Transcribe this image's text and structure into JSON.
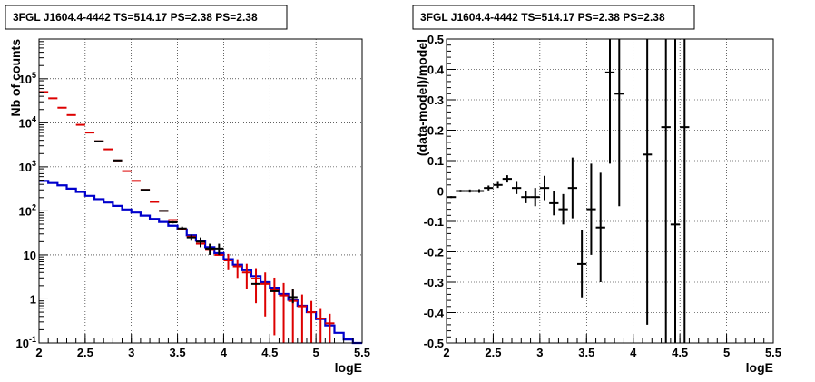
{
  "chart_data": [
    {
      "type": "line",
      "title": "3FGL J1604.4-4442 TS=514.17 PS=2.38 PS=2.38",
      "xlabel": "logE",
      "ylabel": "Nb of counts",
      "xlim": [
        2,
        5.5
      ],
      "ylim": [
        0.1,
        800000
      ],
      "yscale": "log",
      "grid": true,
      "x_ticks": [
        "2",
        "2.5",
        "3",
        "3.5",
        "4",
        "4.5",
        "5",
        "5.5"
      ],
      "y_ticks": [
        "10^{-1}",
        "1",
        "10",
        "10^{2}",
        "10^{3}",
        "10^{4}",
        "10^{5}"
      ],
      "series": [
        {
          "color": "#0000cc",
          "style": "step",
          "x": [
            2.05,
            2.15,
            2.25,
            2.35,
            2.45,
            2.55,
            2.65,
            2.75,
            2.85,
            2.95,
            3.05,
            3.15,
            3.25,
            3.35,
            3.45,
            3.55,
            3.65,
            3.75,
            3.85,
            3.95,
            4.05,
            4.15,
            4.25,
            4.35,
            4.45,
            4.55,
            4.65,
            4.75,
            4.85,
            4.95,
            5.05,
            5.15,
            5.25,
            5.35,
            5.45
          ],
          "y": [
            480,
            430,
            380,
            320,
            270,
            220,
            185,
            155,
            130,
            108,
            92,
            78,
            66,
            56,
            46,
            38,
            28,
            21,
            15,
            11,
            8.0,
            6.0,
            4.5,
            3.3,
            2.4,
            1.8,
            1.3,
            0.95,
            0.7,
            0.5,
            0.35,
            0.25,
            0.17,
            0.12,
            0.1
          ]
        },
        {
          "color": "#dd0000",
          "style": "markers-errorbars",
          "x": [
            2.05,
            2.15,
            2.25,
            2.35,
            2.45,
            2.55,
            2.65,
            2.75,
            2.85,
            2.95,
            3.05,
            3.15,
            3.25,
            3.35,
            3.45,
            3.55,
            3.65,
            3.75,
            3.85,
            3.95,
            4.05,
            4.15,
            4.25,
            4.35,
            4.45,
            4.55,
            4.65,
            4.75,
            4.85,
            4.95,
            5.05,
            5.15
          ],
          "y": [
            50000,
            36000,
            22000,
            15000,
            9000,
            6000,
            3800,
            2500,
            1400,
            800,
            480,
            300,
            160,
            100,
            62,
            38,
            26,
            18,
            13,
            10,
            7.5,
            5.5,
            4.0,
            2.9,
            2.2,
            1.6,
            1.2,
            0.9,
            0.68,
            0.5,
            0.36,
            0.28
          ],
          "err_low": [
            0,
            0,
            0,
            0,
            0,
            0,
            0,
            0,
            0,
            0,
            0,
            0,
            0,
            0,
            0,
            0,
            0,
            0,
            0,
            0,
            3,
            2.5,
            2.3,
            2.1,
            1.8,
            1.45,
            1.1,
            0.8,
            0.58,
            0.4,
            0.26,
            0.18
          ],
          "err_high": [
            0,
            0,
            0,
            0,
            0,
            0,
            0,
            0,
            0,
            0,
            0,
            0,
            0,
            0,
            0,
            0,
            0,
            0,
            0,
            0,
            3,
            2.5,
            2.3,
            2.1,
            1.8,
            1.45,
            1.1,
            0.8,
            0.58,
            0.4,
            0.26,
            0.18
          ]
        },
        {
          "color": "#000000",
          "style": "markers-errorbars",
          "x": [
            2.65,
            2.85,
            3.15,
            3.35,
            3.45,
            3.55,
            3.65,
            3.75,
            3.85,
            3.95,
            4.35,
            4.55,
            4.75
          ],
          "y": [
            3800,
            1400,
            300,
            100,
            55,
            40,
            25,
            20,
            14,
            14,
            2.2,
            1.5,
            1.1
          ],
          "err_low": [
            0,
            0,
            0,
            0,
            3,
            4,
            4,
            5,
            4,
            4,
            0,
            0,
            0.3
          ],
          "err_high": [
            0,
            0,
            0,
            0,
            3,
            4,
            4,
            5,
            4,
            4,
            0,
            0,
            0.6
          ]
        }
      ]
    },
    {
      "type": "scatter",
      "title": "3FGL J1604.4-4442 TS=514.17 PS=2.38 PS=2.38",
      "xlabel": "logE",
      "ylabel": "(data-model)/model",
      "xlim": [
        2,
        5.5
      ],
      "ylim": [
        -0.5,
        0.5
      ],
      "grid": true,
      "x_ticks": [
        "2",
        "2.5",
        "3",
        "3.5",
        "4",
        "4.5",
        "5",
        "5.5"
      ],
      "y_ticks": [
        "-0.5",
        "-0.4",
        "-0.3",
        "-0.2",
        "-0.1",
        "0",
        "0.1",
        "0.2",
        "0.3",
        "0.4",
        "0.5"
      ],
      "series": [
        {
          "color": "#000000",
          "style": "markers-errorbars",
          "x": [
            2.05,
            2.15,
            2.25,
            2.35,
            2.45,
            2.55,
            2.65,
            2.75,
            2.85,
            2.95,
            3.05,
            3.15,
            3.25,
            3.35,
            3.45,
            3.55,
            3.65,
            3.75,
            3.85,
            4.15,
            4.35,
            4.45,
            4.55
          ],
          "y": [
            -0.02,
            0.0,
            0.0,
            0.0,
            0.01,
            0.02,
            0.04,
            0.01,
            -0.02,
            -0.02,
            0.01,
            -0.04,
            -0.06,
            0.01,
            -0.24,
            -0.06,
            -0.12,
            0.39,
            0.32,
            0.12,
            0.21,
            -0.11,
            0.21
          ],
          "err": [
            0.003,
            0.004,
            0.005,
            0.006,
            0.008,
            0.01,
            0.012,
            0.02,
            0.02,
            0.03,
            0.04,
            0.04,
            0.05,
            0.1,
            0.11,
            0.15,
            0.18,
            0.3,
            0.37,
            0.56,
            0.72,
            0.72,
            0.72
          ]
        }
      ]
    }
  ]
}
